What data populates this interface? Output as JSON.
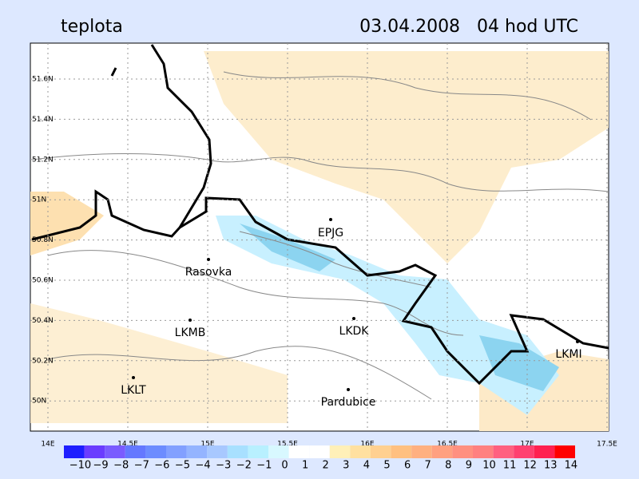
{
  "header": {
    "title": "teplota",
    "datetime": "03.04.2008   04 hod UTC"
  },
  "map": {
    "lat_ticks": [
      {
        "value": 51.6,
        "label": "51.6N"
      },
      {
        "value": 51.4,
        "label": "51.4N"
      },
      {
        "value": 51.2,
        "label": "51.2N"
      },
      {
        "value": 51,
        "label": "51N"
      },
      {
        "value": 50.8,
        "label": "50.8N"
      },
      {
        "value": 50.6,
        "label": "50.6N"
      },
      {
        "value": 50.4,
        "label": "50.4N"
      },
      {
        "value": 50.2,
        "label": "50.2N"
      },
      {
        "value": 50,
        "label": "50N"
      }
    ],
    "lon_ticks": [
      {
        "value": 14,
        "label": "14E"
      },
      {
        "value": 14.5,
        "label": "14.5E"
      },
      {
        "value": 15,
        "label": "15E"
      },
      {
        "value": 15.5,
        "label": "15.5E"
      },
      {
        "value": 16,
        "label": "16E"
      },
      {
        "value": 16.5,
        "label": "16.5E"
      },
      {
        "value": 17,
        "label": "17E"
      },
      {
        "value": 17.5,
        "label": "17.5E"
      }
    ],
    "stations": [
      "EPJG",
      "Rasovka",
      "LKMB",
      "LKDK",
      "LKMI",
      "LKLT",
      "Pardubice"
    ]
  },
  "legend": {
    "labels": [
      {
        "value": -10,
        "label": "−10"
      },
      {
        "value": -9,
        "label": "−9"
      },
      {
        "value": -8,
        "label": "−8"
      },
      {
        "value": -7,
        "label": "−7"
      },
      {
        "value": -6,
        "label": "−6"
      },
      {
        "value": -5,
        "label": "−5"
      },
      {
        "value": -4,
        "label": "−4"
      },
      {
        "value": -3,
        "label": "−3"
      },
      {
        "value": -2,
        "label": "−2"
      },
      {
        "value": -1,
        "label": "−1"
      },
      0,
      1,
      2,
      3,
      4,
      5,
      6,
      7,
      8,
      9,
      10,
      11,
      12,
      13,
      14
    ],
    "colors": [
      "#1e1eff",
      "#6a3cff",
      "#7a5cff",
      "#6478ff",
      "#6c8cff",
      "#82a0ff",
      "#94b4ff",
      "#a8c8ff",
      "#a8e0ff",
      "#b8f0ff",
      "#d8f8ff",
      "#ffffff",
      "#ffffff",
      "#fff0b8",
      "#ffe0a0",
      "#ffd090",
      "#ffc080",
      "#ffb080",
      "#ffa080",
      "#ff9080",
      "#ff8080",
      "#ff6080",
      "#ff4070",
      "#ff2050",
      "#ff0000"
    ]
  }
}
